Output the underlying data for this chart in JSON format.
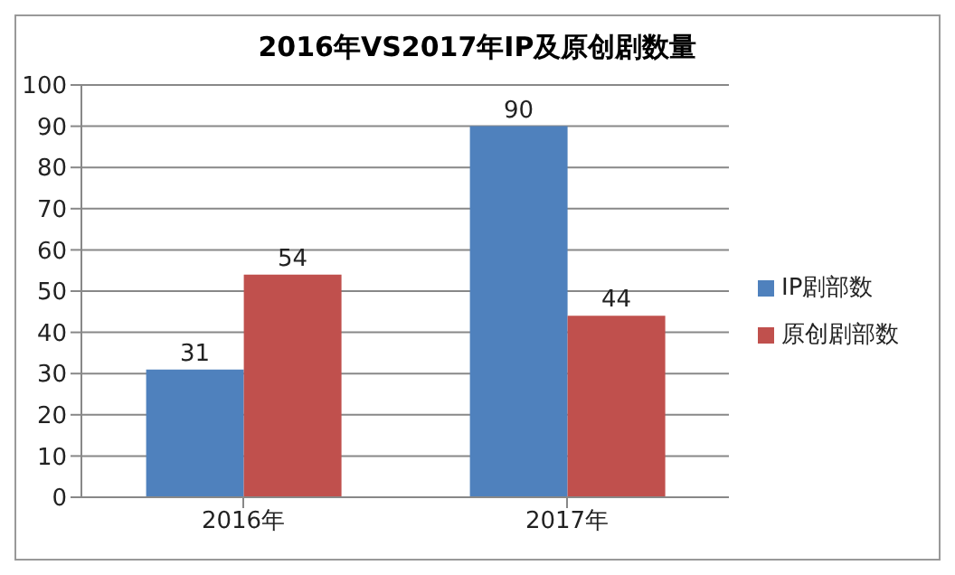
{
  "chart_data": {
    "type": "bar",
    "title": "2016年VS2017年IP及原创剧数量",
    "categories": [
      "2016年",
      "2017年"
    ],
    "series": [
      {
        "name": "IP剧部数",
        "color": "#4f81bd",
        "values": [
          31,
          90
        ]
      },
      {
        "name": "原创剧部数",
        "color": "#c0504d",
        "values": [
          54,
          44
        ]
      }
    ],
    "ylim": [
      0,
      100
    ],
    "yticks": [
      0,
      10,
      20,
      30,
      40,
      50,
      60,
      70,
      80,
      90,
      100
    ],
    "grid": "y",
    "legend": "right",
    "data_labels": true
  }
}
